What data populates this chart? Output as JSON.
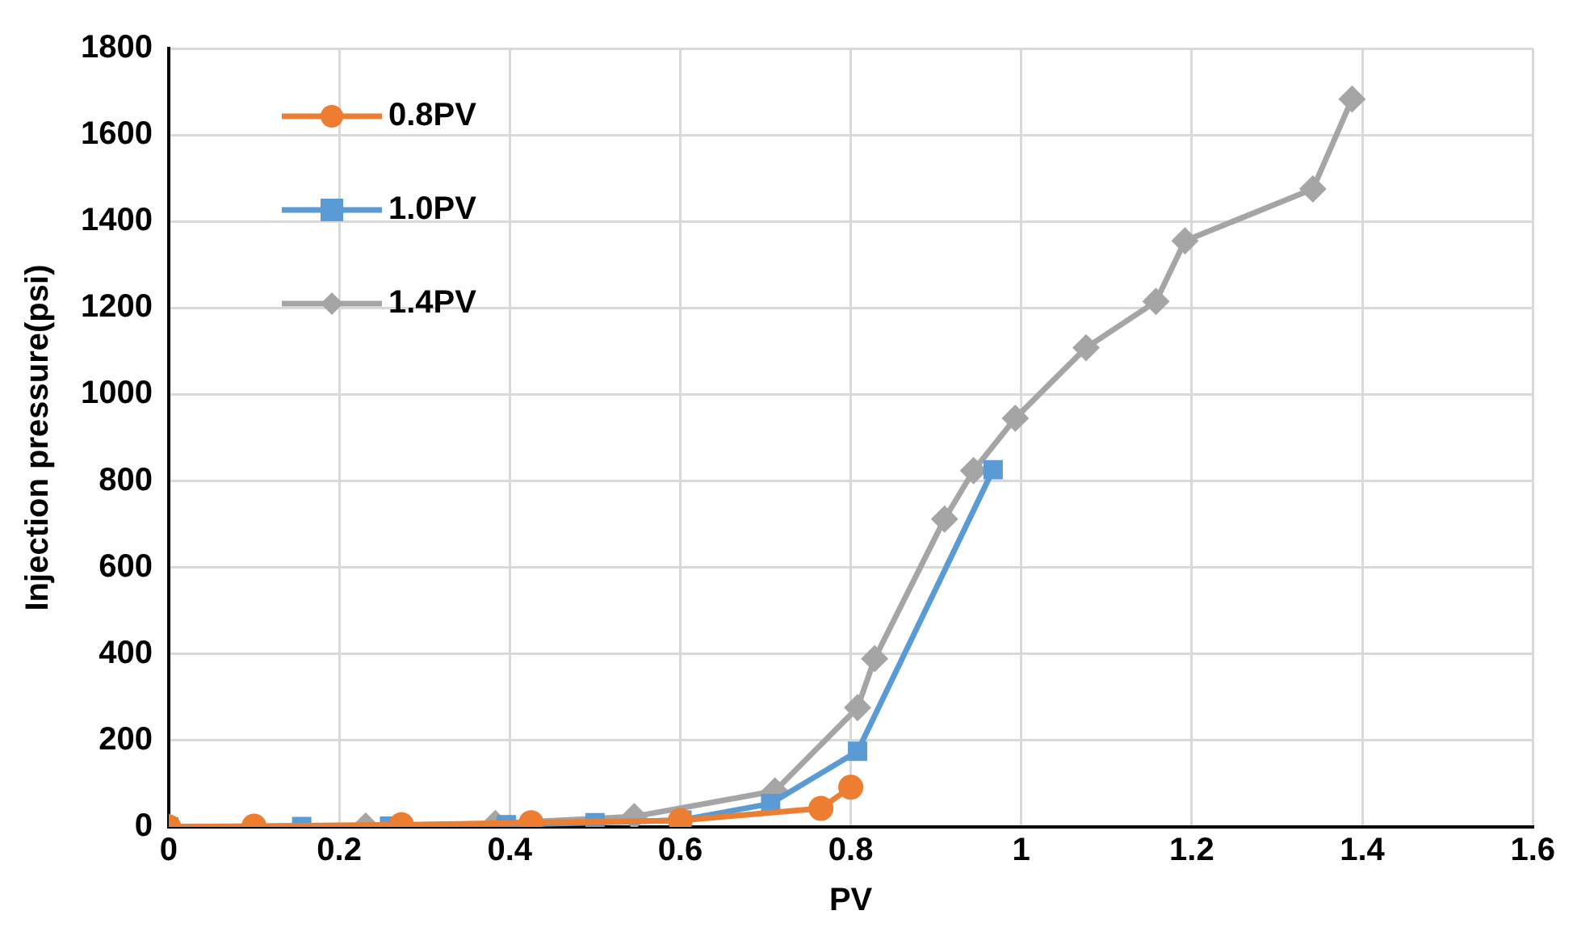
{
  "chart_data": {
    "type": "line",
    "xlabel": "PV",
    "ylabel": "Injection pressure(psi)",
    "xlim": [
      0,
      1.6
    ],
    "xticks": [
      0,
      0.2,
      0.4,
      0.6,
      0.8,
      1,
      1.2,
      1.4,
      1.6
    ],
    "ylim": [
      0,
      1800
    ],
    "yticks": [
      0,
      200,
      400,
      600,
      800,
      1000,
      1200,
      1400,
      1600,
      1800
    ],
    "grid": true,
    "legend": "top left",
    "series": [
      {
        "name": "0.8PV",
        "color": "#ed7d31",
        "marker": "circle",
        "x": [
          0,
          0.1,
          0.273,
          0.425,
          0.6,
          0.765,
          0.8
        ],
        "values": [
          0,
          2,
          5,
          10,
          15,
          43,
          92
        ]
      },
      {
        "name": "1.0PV",
        "color": "#5b9bd5",
        "marker": "square",
        "x": [
          0,
          0.156,
          0.259,
          0.396,
          0.5,
          0.602,
          0.706,
          0.808,
          0.967
        ],
        "values": [
          0,
          1,
          2,
          5,
          10,
          16,
          54,
          175,
          826
        ]
      },
      {
        "name": "1.4PV",
        "color": "#a5a5a5",
        "marker": "diamond",
        "x": [
          0,
          0.231,
          0.383,
          0.546,
          0.711,
          0.808,
          0.828,
          0.91,
          0.944,
          0.993,
          1.076,
          1.158,
          1.192,
          1.342,
          1.388
        ],
        "values": [
          0,
          2,
          8,
          24,
          83,
          276,
          389,
          712,
          824,
          945,
          1108,
          1215,
          1355,
          1475,
          1683
        ]
      }
    ]
  }
}
